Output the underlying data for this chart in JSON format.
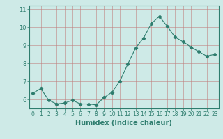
{
  "x": [
    0,
    1,
    2,
    3,
    4,
    5,
    6,
    7,
    8,
    9,
    10,
    11,
    12,
    13,
    14,
    15,
    16,
    17,
    18,
    19,
    20,
    21,
    22,
    23
  ],
  "y": [
    6.35,
    6.6,
    5.95,
    5.75,
    5.8,
    5.95,
    5.75,
    5.75,
    5.7,
    6.1,
    6.4,
    7.0,
    7.95,
    8.85,
    9.4,
    10.2,
    10.6,
    10.05,
    9.45,
    9.2,
    8.9,
    8.65,
    8.4,
    8.5
  ],
  "line_color": "#2e7d6e",
  "marker": "D",
  "marker_size": 2.2,
  "bg_color": "#ceeae7",
  "grid_color": "#c08080",
  "axis_color": "#2e7d6e",
  "xlabel": "Humidex (Indice chaleur)",
  "ylim": [
    5.5,
    11.2
  ],
  "xlim": [
    -0.5,
    23.5
  ],
  "yticks": [
    6,
    7,
    8,
    9,
    10,
    11
  ],
  "xticks": [
    0,
    1,
    2,
    3,
    4,
    5,
    6,
    7,
    8,
    9,
    10,
    11,
    12,
    13,
    14,
    15,
    16,
    17,
    18,
    19,
    20,
    21,
    22,
    23
  ],
  "font_color": "#2e7d6e",
  "tick_fontsize": 5.5,
  "xlabel_fontsize": 7.0
}
